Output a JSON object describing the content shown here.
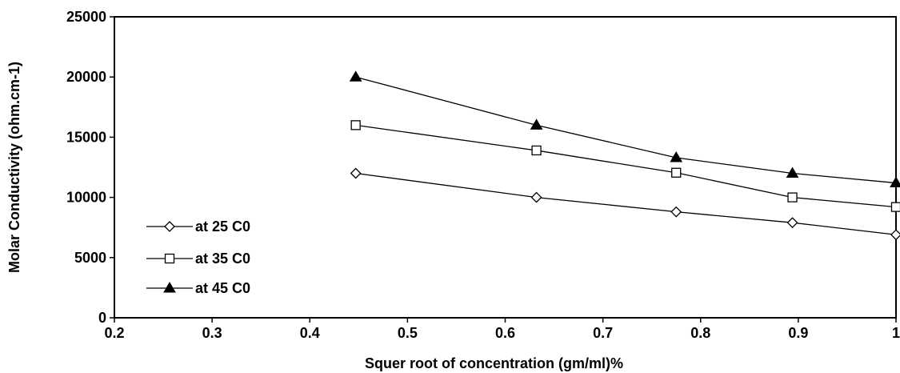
{
  "chart_data": {
    "type": "line",
    "title": "",
    "xlabel": "Squer root of concentration (gm/ml)%",
    "ylabel": "Molar Conductivity (ohm.cm-1)",
    "xlim": [
      0.2,
      1
    ],
    "ylim": [
      0,
      25000
    ],
    "x_ticks": [
      "0.2",
      "0.3",
      "0.4",
      "0.5",
      "0.6",
      "0.7",
      "0.8",
      "0.9",
      "1"
    ],
    "y_ticks": [
      "0",
      "5000",
      "10000",
      "15000",
      "20000",
      "25000"
    ],
    "grid": false,
    "legend_position": "left",
    "x": [
      0.447,
      0.632,
      0.775,
      0.894,
      1.0
    ],
    "series": [
      {
        "name": "at 25 C0",
        "marker": "diamond-open",
        "values": [
          12000,
          10000,
          8800,
          7900,
          6900
        ]
      },
      {
        "name": "at 35 C0",
        "marker": "square-open",
        "values": [
          16000,
          13900,
          12050,
          10000,
          9200
        ]
      },
      {
        "name": "at 45 C0",
        "marker": "triangle-filled",
        "values": [
          20000,
          16000,
          13300,
          12000,
          11200
        ]
      }
    ]
  }
}
